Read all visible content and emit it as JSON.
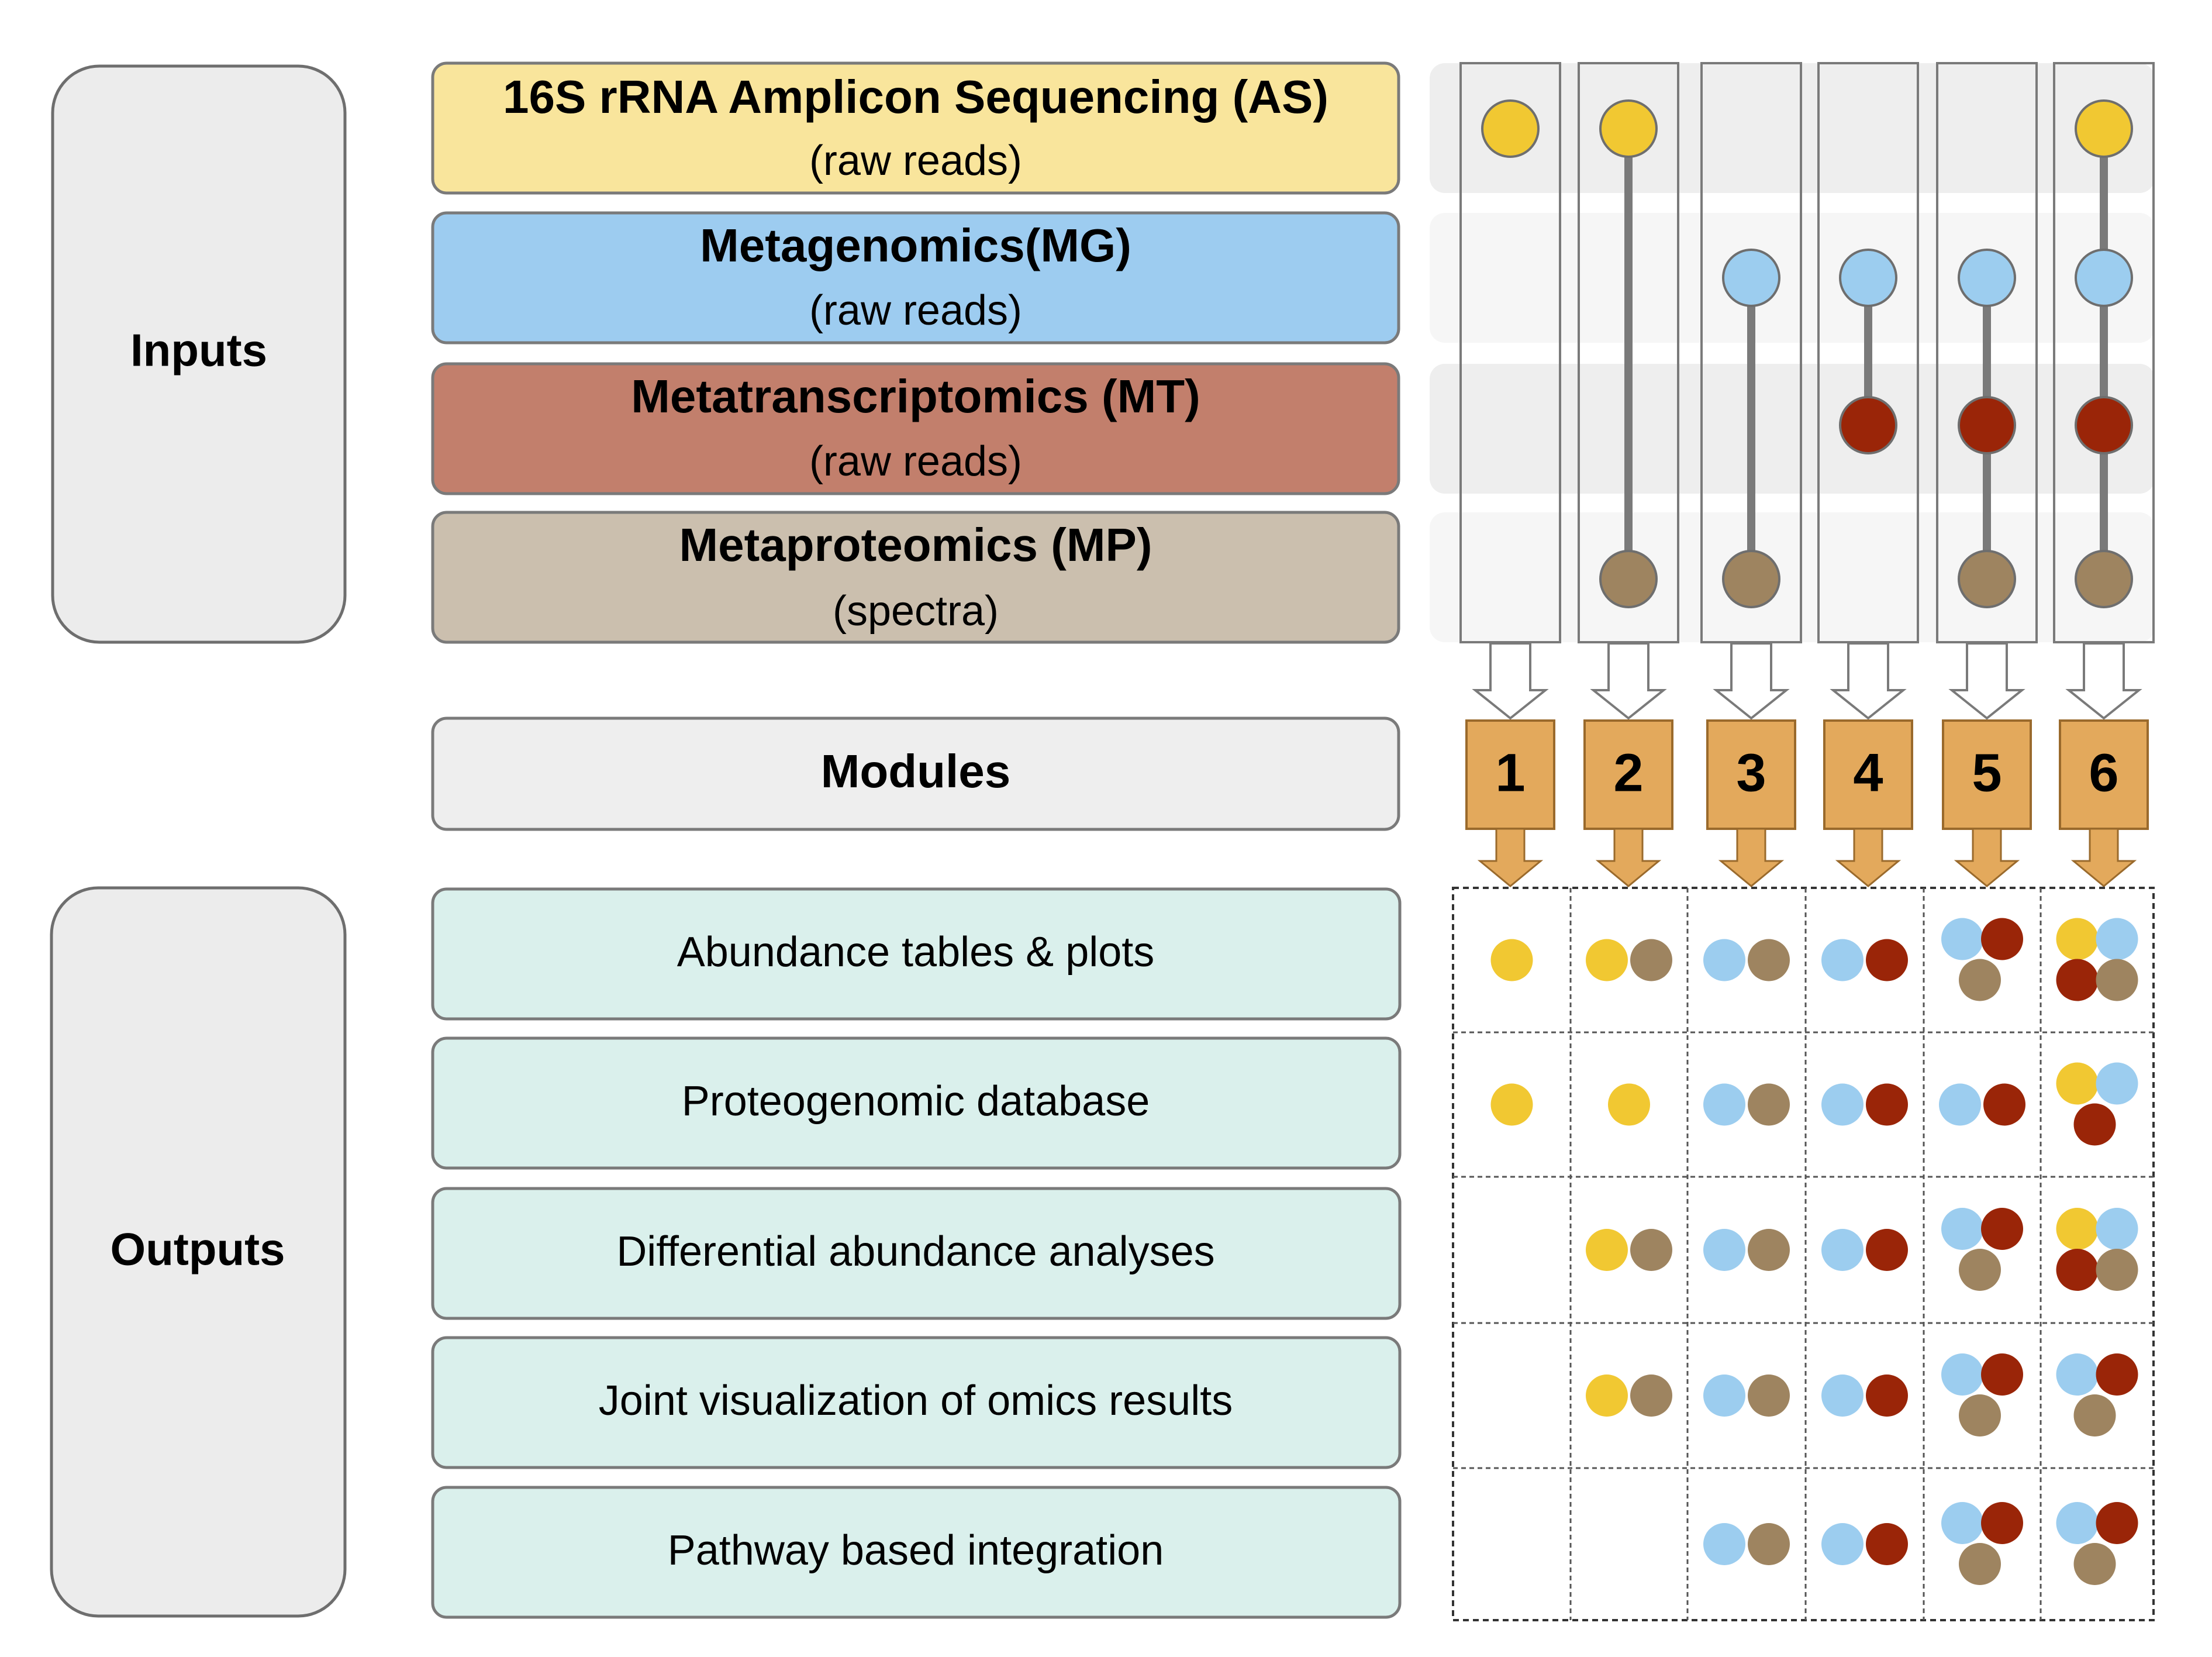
{
  "groups": {
    "inputs_label": "Inputs",
    "outputs_label": "Outputs"
  },
  "inputs": [
    {
      "key": "AS",
      "title": "16S rRNA Amplicon Sequencing (AS)",
      "subtitle": "(raw reads)",
      "fill": "#f9e59c",
      "dot": "#f1c832"
    },
    {
      "key": "MG",
      "title": "Metagenomics(MG)",
      "subtitle": "(raw reads)",
      "fill": "#9dccf0",
      "dot": "#9ccdef"
    },
    {
      "key": "MT",
      "title": "Metatranscriptomics (MT)",
      "subtitle": "(raw reads)",
      "fill": "#c27f6c",
      "dot": "#9a2508"
    },
    {
      "key": "MP",
      "title": "Metaproteomics (MP)",
      "subtitle": "(spectra)",
      "fill": "#cbbfae",
      "dot": "#9e8460"
    }
  ],
  "modules": {
    "label": "Modules",
    "items": [
      {
        "number": "1",
        "inputs": [
          "AS"
        ]
      },
      {
        "number": "2",
        "inputs": [
          "AS",
          "MP"
        ]
      },
      {
        "number": "3",
        "inputs": [
          "MG",
          "MP"
        ]
      },
      {
        "number": "4",
        "inputs": [
          "MG",
          "MT"
        ]
      },
      {
        "number": "5",
        "inputs": [
          "MG",
          "MT",
          "MP"
        ]
      },
      {
        "number": "6",
        "inputs": [
          "AS",
          "MG",
          "MT",
          "MP"
        ]
      }
    ],
    "badge_color": "#e3a95c"
  },
  "outputs": [
    {
      "label": "Abundance tables & plots",
      "cells": [
        [
          "AS"
        ],
        [
          "AS",
          "MP"
        ],
        [
          "MG",
          "MP"
        ],
        [
          "MG",
          "MT"
        ],
        [
          "MG",
          "MT",
          "MP"
        ],
        [
          "AS",
          "MG",
          "MT",
          "MP"
        ]
      ]
    },
    {
      "label": "Proteogenomic database",
      "cells": [
        [
          "AS"
        ],
        [
          "AS"
        ],
        [
          "MG",
          "MP"
        ],
        [
          "MG",
          "MT"
        ],
        [
          "MG",
          "MT"
        ],
        [
          "AS",
          "MG",
          "MT"
        ]
      ]
    },
    {
      "label": "Differential abundance analyses",
      "cells": [
        [],
        [
          "AS",
          "MP"
        ],
        [
          "MG",
          "MP"
        ],
        [
          "MG",
          "MT"
        ],
        [
          "MG",
          "MT",
          "MP"
        ],
        [
          "AS",
          "MG",
          "MT",
          "MP"
        ]
      ]
    },
    {
      "label": "Joint visualization of omics results",
      "cells": [
        [],
        [
          "AS",
          "MP"
        ],
        [
          "MG",
          "MP"
        ],
        [
          "MG",
          "MT"
        ],
        [
          "MG",
          "MT",
          "MP"
        ],
        [
          "MG",
          "MT",
          "MP"
        ]
      ]
    },
    {
      "label": "Pathway based integration",
      "cells": [
        [],
        [],
        [
          "MG",
          "MP"
        ],
        [
          "MG",
          "MT"
        ],
        [
          "MG",
          "MT",
          "MP"
        ],
        [
          "MG",
          "MT",
          "MP"
        ]
      ]
    }
  ],
  "colors": {
    "group_fill": "#ececec",
    "output_fill": "#daf0ec",
    "module_row_fill": "#eeeeee",
    "connector": "#7a7a7a"
  }
}
